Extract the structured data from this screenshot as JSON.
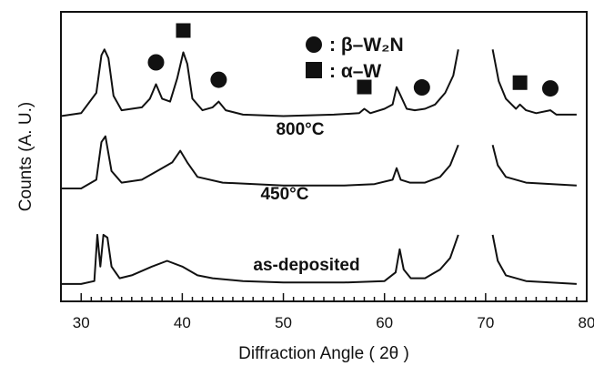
{
  "chart_data": {
    "type": "line",
    "xlabel": "Diffraction Angle ( 2θ )",
    "ylabel": "Counts (A. U.)",
    "xlim": [
      28,
      80
    ],
    "x_ticks": [
      "30",
      "40",
      "50",
      "60",
      "70",
      "80"
    ],
    "y_ticks_labeled": false,
    "grid": false,
    "legend_position": "top-right",
    "legend": [
      {
        "marker": "circle",
        "label": ": β–W₂N"
      },
      {
        "marker": "square",
        "label": ": α–W"
      }
    ],
    "series": [
      {
        "name": "800°C",
        "x": [
          28,
          30,
          31.5,
          32.0,
          32.3,
          32.7,
          33.2,
          34,
          36,
          36.8,
          37.4,
          38.0,
          38.8,
          39.5,
          40.1,
          40.5,
          41.0,
          42,
          43.0,
          43.6,
          44.3,
          46,
          50,
          55,
          57.5,
          58.0,
          58.6,
          60,
          60.8,
          61.2,
          61.6,
          62.2,
          63.0,
          64.0,
          65,
          66,
          66.8,
          67.3,
          70.7,
          71.3,
          72,
          73.0,
          73.4,
          74,
          75,
          76.4,
          77,
          79
        ],
        "y": [
          0.64,
          0.65,
          0.72,
          0.85,
          0.87,
          0.84,
          0.71,
          0.66,
          0.67,
          0.7,
          0.75,
          0.7,
          0.69,
          0.77,
          0.86,
          0.82,
          0.7,
          0.66,
          0.67,
          0.69,
          0.66,
          0.645,
          0.64,
          0.645,
          0.65,
          0.665,
          0.65,
          0.665,
          0.68,
          0.74,
          0.71,
          0.665,
          0.66,
          0.665,
          0.68,
          0.72,
          0.78,
          0.87,
          0.87,
          0.76,
          0.7,
          0.665,
          0.68,
          0.66,
          0.65,
          0.66,
          0.645,
          0.645
        ],
        "annotations": [
          {
            "marker": "circle",
            "x": 37.4,
            "phase": "β–W₂N"
          },
          {
            "marker": "square",
            "x": 40.1,
            "phase": "α–W"
          },
          {
            "marker": "circle",
            "x": 43.6,
            "phase": "β–W₂N"
          },
          {
            "marker": "square",
            "x": 58.0,
            "phase": "α–W"
          },
          {
            "marker": "circle",
            "x": 63.7,
            "phase": "β–W₂N"
          },
          {
            "marker": "square",
            "x": 73.4,
            "phase": "α–W"
          },
          {
            "marker": "circle",
            "x": 76.4,
            "phase": "β–W₂N"
          }
        ]
      },
      {
        "name": "450°C",
        "x": [
          28,
          30,
          31.5,
          32.0,
          32.4,
          33.0,
          34,
          36,
          37,
          38,
          39,
          39.8,
          40.5,
          41.5,
          44,
          50,
          56,
          59,
          60.8,
          61.2,
          61.6,
          62.5,
          64,
          65.5,
          66.5,
          67.3,
          70.7,
          71.2,
          72,
          74,
          79
        ],
        "y": [
          0.39,
          0.39,
          0.42,
          0.55,
          0.57,
          0.45,
          0.41,
          0.42,
          0.44,
          0.46,
          0.48,
          0.52,
          0.48,
          0.43,
          0.41,
          0.4,
          0.4,
          0.405,
          0.42,
          0.46,
          0.42,
          0.41,
          0.41,
          0.43,
          0.47,
          0.54,
          0.54,
          0.47,
          0.43,
          0.41,
          0.4
        ],
        "annotations": []
      },
      {
        "name": "as-deposited",
        "x": [
          28,
          30,
          31.3,
          31.6,
          31.9,
          32.2,
          32.6,
          33.0,
          33.8,
          35,
          37,
          38.5,
          40,
          41.5,
          43,
          46,
          50,
          56,
          60,
          61.1,
          61.5,
          61.9,
          62.6,
          64,
          65.5,
          66.5,
          67.3,
          70.7,
          71.2,
          72,
          74,
          79
        ],
        "y": [
          0.06,
          0.06,
          0.07,
          0.23,
          0.12,
          0.23,
          0.22,
          0.12,
          0.08,
          0.09,
          0.12,
          0.14,
          0.12,
          0.09,
          0.08,
          0.07,
          0.065,
          0.065,
          0.07,
          0.1,
          0.18,
          0.11,
          0.08,
          0.08,
          0.11,
          0.15,
          0.23,
          0.23,
          0.14,
          0.09,
          0.07,
          0.06
        ],
        "annotations": []
      }
    ]
  }
}
